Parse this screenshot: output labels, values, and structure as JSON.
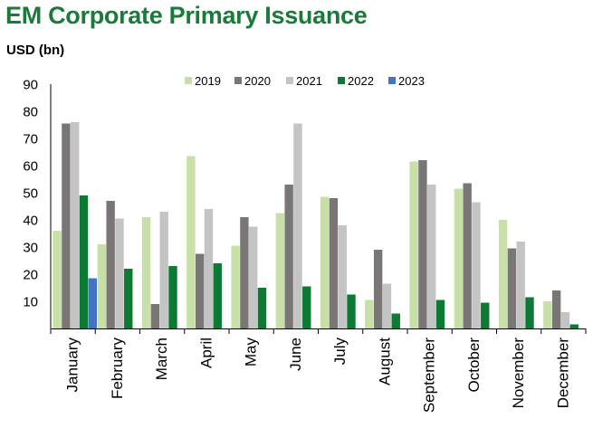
{
  "title": "EM Corporate Primary Issuance",
  "colors": {
    "title": "#1a7a3a",
    "axis": "#000000"
  },
  "chart_data": {
    "type": "bar",
    "ylabel": "USD (bn)",
    "xlabel": "",
    "ylim": [
      0,
      90
    ],
    "yticks": [
      10,
      20,
      30,
      40,
      50,
      60,
      70,
      80,
      90
    ],
    "grid": false,
    "legend_position": "top",
    "categories": [
      "January",
      "February",
      "March",
      "April",
      "May",
      "June",
      "July",
      "August",
      "September",
      "October",
      "November",
      "December"
    ],
    "series": [
      {
        "name": "2019",
        "color": "#c6e0a8",
        "values": [
          36,
          31,
          41,
          63.5,
          30.5,
          42.5,
          48.5,
          10.5,
          61.5,
          51.5,
          40,
          10
        ]
      },
      {
        "name": "2020",
        "color": "#7a7675",
        "values": [
          75.5,
          47,
          9,
          27.5,
          41,
          53,
          48,
          29,
          62,
          53.5,
          29.5,
          14
        ]
      },
      {
        "name": "2021",
        "color": "#c4c4c4",
        "values": [
          76,
          40.5,
          43,
          44,
          37.5,
          75.5,
          38,
          16.5,
          53,
          46.5,
          32,
          6
        ]
      },
      {
        "name": "2022",
        "color": "#0d7a34",
        "values": [
          49,
          22,
          23,
          24,
          15,
          15.5,
          12.5,
          5.5,
          10.5,
          9.5,
          11.5,
          1.5
        ]
      },
      {
        "name": "2023",
        "color": "#4472c4",
        "values": [
          18.5,
          null,
          null,
          null,
          null,
          null,
          null,
          null,
          null,
          null,
          null,
          null
        ]
      }
    ]
  }
}
